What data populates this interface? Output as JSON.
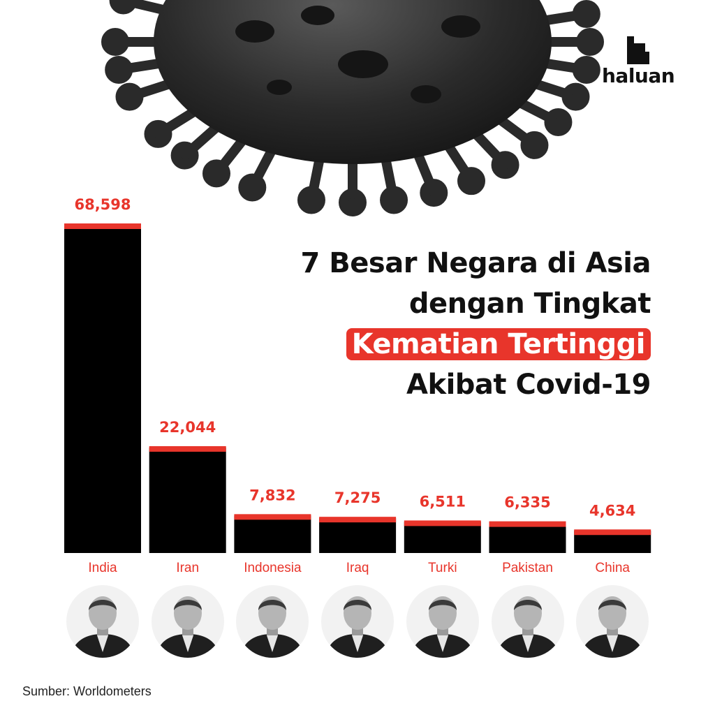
{
  "brand": {
    "name": "haluan"
  },
  "title": {
    "line1": "7 Besar Negara di Asia",
    "line2": "dengan Tingkat",
    "line3_highlight": "Kematian Tertinggi",
    "line4": "Akibat Covid-19"
  },
  "colors": {
    "accent": "#e8352b",
    "bar": "#000000",
    "text": "#111111"
  },
  "chart_data": {
    "type": "bar",
    "categories": [
      "India",
      "Iran",
      "Indonesia",
      "Iraq",
      "Turki",
      "Pakistan",
      "China"
    ],
    "values": [
      68598,
      22044,
      7832,
      7275,
      6511,
      6335,
      4634
    ],
    "value_labels": [
      "68,598",
      "22,044",
      "7,832",
      "7,275",
      "6,511",
      "6,335",
      "4,634"
    ],
    "title": "7 Besar Negara di Asia dengan Tingkat Kematian Tertinggi Akibat Covid-19",
    "xlabel": "",
    "ylabel": ""
  },
  "source": "Sumber: Worldometers",
  "icons": {
    "decor": "virus-illustration",
    "portraits": "leader-portrait-icon"
  }
}
